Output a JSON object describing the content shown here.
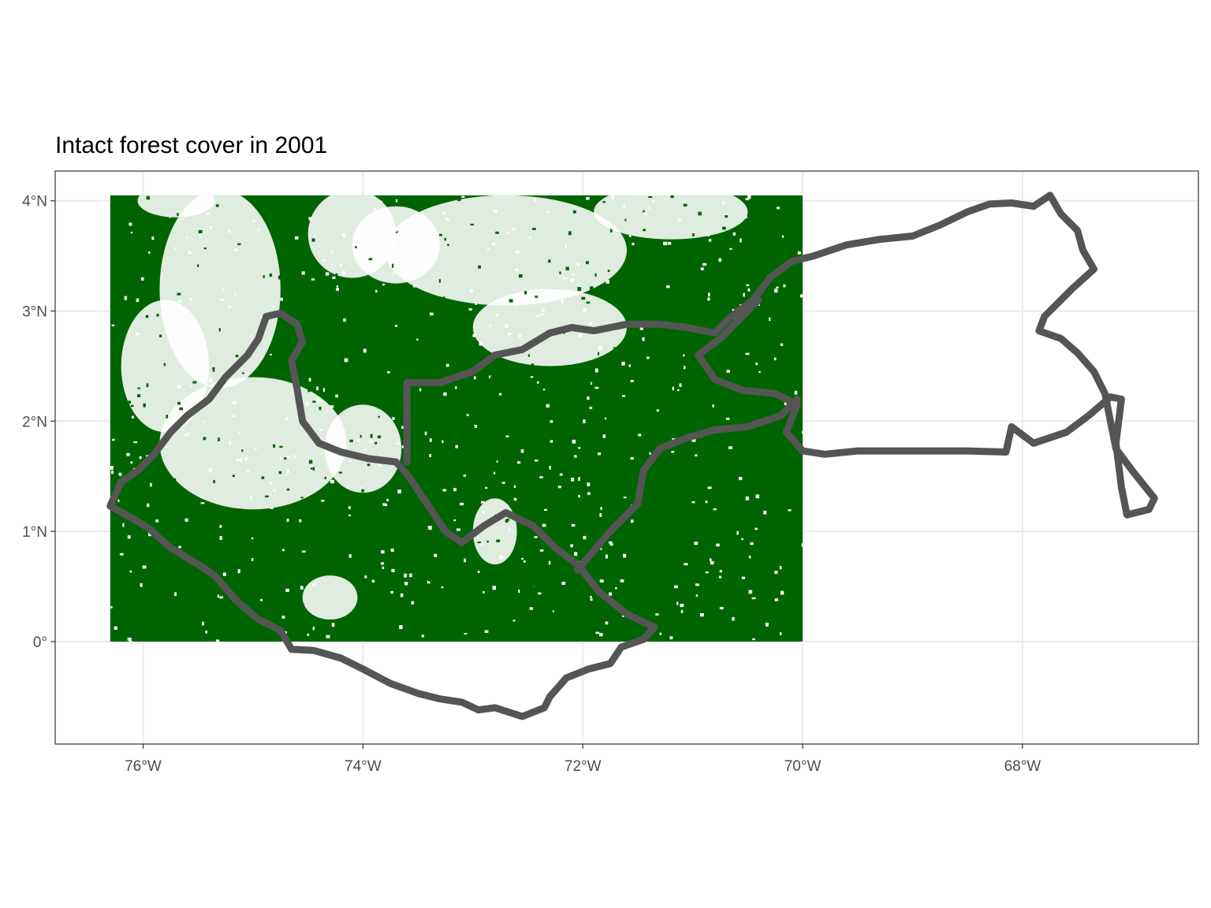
{
  "title": "Intact forest cover in 2001",
  "colors": {
    "forest": "#006400",
    "boundary": "#555555",
    "grid": "#ebebeb",
    "panel_border": "#333333",
    "tick_text": "#4d4d4d"
  },
  "map": {
    "lon_range": [
      -76.8,
      -66.4
    ],
    "lat_range": [
      -0.93,
      4.27
    ],
    "grid": true,
    "raster_extent": {
      "lon": [
        -76.3,
        -70.0
      ],
      "lat": [
        0.0,
        4.05
      ]
    },
    "x_ticks": [
      {
        "lon": -76,
        "label": "76°W"
      },
      {
        "lon": -74,
        "label": "74°W"
      },
      {
        "lon": -72,
        "label": "72°W"
      },
      {
        "lon": -70,
        "label": "70°W"
      },
      {
        "lon": -68,
        "label": "68°W"
      }
    ],
    "y_ticks": [
      {
        "lat": 0,
        "label": "0°"
      },
      {
        "lat": 1,
        "label": "1°N"
      },
      {
        "lat": 2,
        "label": "2°N"
      },
      {
        "lat": 3,
        "label": "3°N"
      },
      {
        "lat": 4,
        "label": "4°N"
      }
    ],
    "non_forest_patches": [
      {
        "lon": -75.3,
        "lat": 3.2,
        "rlon": 0.55,
        "rlat": 0.9
      },
      {
        "lon": -75.0,
        "lat": 1.8,
        "rlon": 0.85,
        "rlat": 0.6
      },
      {
        "lon": -75.8,
        "lat": 2.5,
        "rlon": 0.4,
        "rlat": 0.6
      },
      {
        "lon": -74.1,
        "lat": 3.7,
        "rlon": 0.4,
        "rlat": 0.4
      },
      {
        "lon": -73.7,
        "lat": 3.6,
        "rlon": 0.4,
        "rlat": 0.35
      },
      {
        "lon": -72.7,
        "lat": 3.55,
        "rlon": 1.1,
        "rlat": 0.5
      },
      {
        "lon": -71.2,
        "lat": 3.9,
        "rlon": 0.7,
        "rlat": 0.25
      },
      {
        "lon": -72.3,
        "lat": 2.85,
        "rlon": 0.7,
        "rlat": 0.35
      },
      {
        "lon": -74.0,
        "lat": 1.75,
        "rlon": 0.35,
        "rlat": 0.4
      },
      {
        "lon": -75.7,
        "lat": 4.0,
        "rlon": 0.35,
        "rlat": 0.15
      },
      {
        "lon": -72.8,
        "lat": 1.0,
        "rlon": 0.2,
        "rlat": 0.3
      },
      {
        "lon": -74.3,
        "lat": 0.4,
        "rlon": 0.25,
        "rlat": 0.2
      }
    ],
    "boundary_outer": [
      [
        -76.3,
        1.23
      ],
      [
        -76.2,
        1.45
      ],
      [
        -76.05,
        1.55
      ],
      [
        -75.9,
        1.7
      ],
      [
        -75.75,
        1.9
      ],
      [
        -75.6,
        2.05
      ],
      [
        -75.4,
        2.2
      ],
      [
        -75.25,
        2.4
      ],
      [
        -75.05,
        2.6
      ],
      [
        -74.95,
        2.75
      ],
      [
        -74.88,
        2.95
      ],
      [
        -74.75,
        2.98
      ],
      [
        -74.6,
        2.88
      ],
      [
        -74.55,
        2.72
      ],
      [
        -74.65,
        2.55
      ],
      [
        -74.6,
        2.3
      ],
      [
        -74.55,
        2.0
      ],
      [
        -74.4,
        1.8
      ],
      [
        -74.2,
        1.72
      ],
      [
        -73.95,
        1.66
      ],
      [
        -73.7,
        1.63
      ],
      [
        -73.6,
        1.52
      ],
      [
        -73.45,
        1.3
      ],
      [
        -73.25,
        1.0
      ],
      [
        -73.1,
        0.9
      ],
      [
        -72.9,
        1.05
      ],
      [
        -72.7,
        1.17
      ],
      [
        -72.45,
        1.05
      ],
      [
        -72.25,
        0.85
      ],
      [
        -72.05,
        0.7
      ],
      [
        -71.85,
        0.45
      ],
      [
        -71.6,
        0.25
      ],
      [
        -71.35,
        0.13
      ],
      [
        -71.45,
        0.02
      ],
      [
        -71.65,
        -0.05
      ],
      [
        -71.75,
        -0.2
      ],
      [
        -71.95,
        -0.25
      ],
      [
        -72.15,
        -0.33
      ],
      [
        -72.3,
        -0.5
      ],
      [
        -72.35,
        -0.6
      ],
      [
        -72.55,
        -0.68
      ],
      [
        -72.8,
        -0.6
      ],
      [
        -72.95,
        -0.62
      ],
      [
        -73.1,
        -0.55
      ],
      [
        -73.3,
        -0.52
      ],
      [
        -73.5,
        -0.47
      ],
      [
        -73.75,
        -0.38
      ],
      [
        -74.0,
        -0.25
      ],
      [
        -74.2,
        -0.15
      ],
      [
        -74.45,
        -0.08
      ],
      [
        -74.65,
        -0.07
      ],
      [
        -74.75,
        0.1
      ],
      [
        -74.95,
        0.2
      ],
      [
        -75.15,
        0.37
      ],
      [
        -75.35,
        0.6
      ],
      [
        -75.5,
        0.7
      ],
      [
        -75.75,
        0.85
      ],
      [
        -75.95,
        1.03
      ],
      [
        -76.1,
        1.12
      ],
      [
        -76.3,
        1.23
      ]
    ],
    "boundary_north": [
      [
        -73.6,
        1.63
      ],
      [
        -73.6,
        2.35
      ],
      [
        -73.3,
        2.35
      ],
      [
        -73.0,
        2.45
      ],
      [
        -72.8,
        2.6
      ],
      [
        -72.55,
        2.65
      ],
      [
        -72.3,
        2.8
      ],
      [
        -72.1,
        2.85
      ],
      [
        -71.9,
        2.82
      ],
      [
        -71.6,
        2.88
      ],
      [
        -71.3,
        2.88
      ],
      [
        -71.05,
        2.85
      ],
      [
        -70.8,
        2.8
      ],
      [
        -70.65,
        2.95
      ],
      [
        -70.45,
        3.1
      ],
      [
        -70.3,
        3.3
      ],
      [
        -70.1,
        3.45
      ],
      [
        -69.9,
        3.5
      ],
      [
        -69.6,
        3.6
      ],
      [
        -69.3,
        3.65
      ],
      [
        -69.0,
        3.68
      ],
      [
        -68.75,
        3.78
      ],
      [
        -68.5,
        3.9
      ],
      [
        -68.3,
        3.97
      ],
      [
        -68.1,
        3.98
      ],
      [
        -67.9,
        3.95
      ],
      [
        -67.75,
        4.05
      ],
      [
        -67.65,
        3.88
      ],
      [
        -67.5,
        3.73
      ],
      [
        -67.45,
        3.55
      ],
      [
        -67.35,
        3.38
      ],
      [
        -67.55,
        3.2
      ],
      [
        -67.8,
        2.95
      ],
      [
        -67.85,
        2.82
      ],
      [
        -67.65,
        2.75
      ],
      [
        -67.5,
        2.62
      ],
      [
        -67.35,
        2.45
      ],
      [
        -67.25,
        2.25
      ],
      [
        -67.2,
        2.0
      ],
      [
        -67.15,
        1.75
      ],
      [
        -67.0,
        1.55
      ],
      [
        -66.8,
        1.3
      ],
      [
        -66.85,
        1.2
      ],
      [
        -67.05,
        1.15
      ],
      [
        -67.1,
        1.4
      ],
      [
        -67.15,
        1.8
      ],
      [
        -67.1,
        2.2
      ],
      [
        -67.2,
        2.22
      ],
      [
        -67.4,
        2.05
      ],
      [
        -67.6,
        1.9
      ],
      [
        -67.9,
        1.8
      ],
      [
        -68.1,
        1.95
      ],
      [
        -68.15,
        1.72
      ],
      [
        -68.5,
        1.73
      ],
      [
        -69.0,
        1.73
      ],
      [
        -69.5,
        1.73
      ],
      [
        -69.8,
        1.7
      ],
      [
        -70.0,
        1.73
      ],
      [
        -70.15,
        1.9
      ],
      [
        -70.05,
        2.15
      ],
      [
        -70.25,
        2.25
      ],
      [
        -70.55,
        2.28
      ],
      [
        -70.8,
        2.38
      ],
      [
        -70.95,
        2.6
      ],
      [
        -70.75,
        2.75
      ],
      [
        -70.55,
        2.95
      ],
      [
        -70.4,
        3.1
      ]
    ],
    "boundary_inner": [
      [
        -72.05,
        0.65
      ],
      [
        -71.75,
        1.0
      ],
      [
        -71.5,
        1.25
      ],
      [
        -71.45,
        1.55
      ],
      [
        -71.3,
        1.75
      ],
      [
        -71.05,
        1.85
      ],
      [
        -70.8,
        1.92
      ],
      [
        -70.5,
        1.95
      ],
      [
        -70.2,
        2.05
      ],
      [
        -70.05,
        2.2
      ]
    ]
  }
}
